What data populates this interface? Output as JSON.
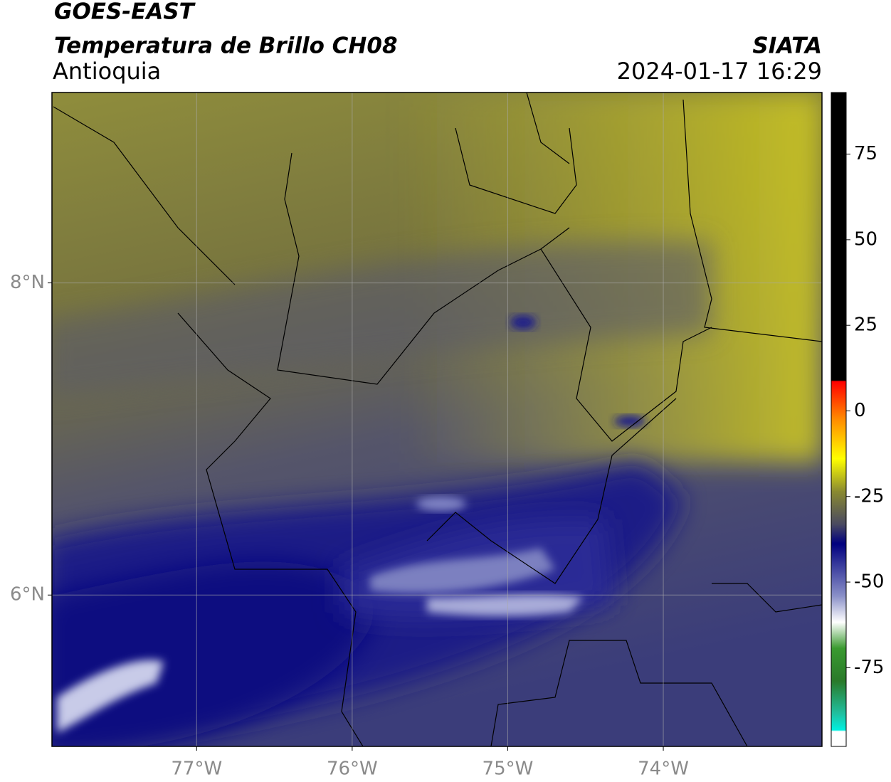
{
  "header": {
    "source": "GOES-EAST",
    "product": "Temperatura de Brillo CH08",
    "region": "Antioquia",
    "org": "SIATA",
    "datetime": "2024-01-17 16:29"
  },
  "map": {
    "xlim": [
      -77.93,
      -72.98
    ],
    "ylim": [
      5.03,
      9.22
    ],
    "xticks": [
      {
        "value": -77,
        "label": "77°W"
      },
      {
        "value": -76,
        "label": "76°W"
      },
      {
        "value": -75,
        "label": "75°W"
      },
      {
        "value": -74,
        "label": "74°W"
      }
    ],
    "yticks": [
      {
        "value": 8,
        "label": "8°N"
      },
      {
        "value": 6,
        "label": "6°N"
      }
    ],
    "grid": true
  },
  "colorbar": {
    "lim": [
      -98,
      93
    ],
    "ticks": [
      75,
      50,
      25,
      0,
      -25,
      -50,
      -75
    ]
  }
}
